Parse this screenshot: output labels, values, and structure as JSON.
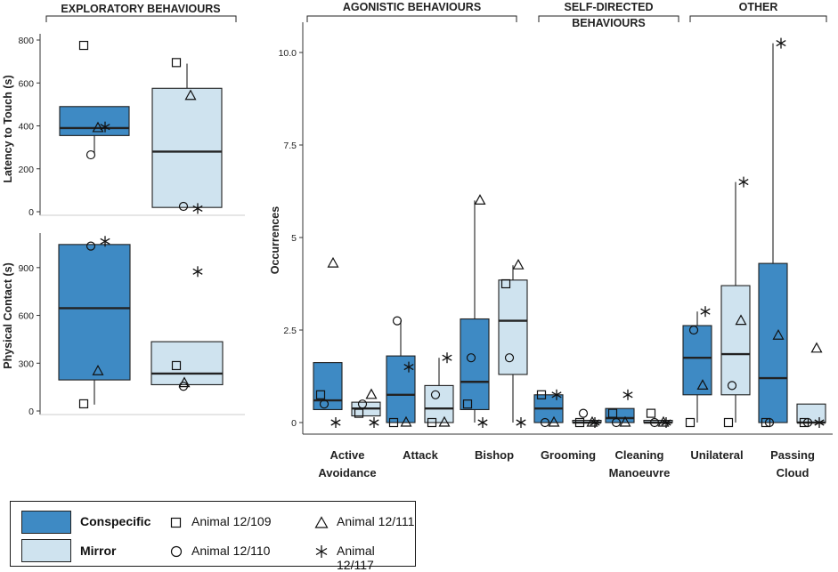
{
  "colors": {
    "conspecific": "#3e8ac4",
    "mirror": "#cfe3ef",
    "stroke": "#1f1f1f",
    "median": "#222222"
  },
  "legend": {
    "groups": [
      {
        "key": "conspecific",
        "label": "Conspecific"
      },
      {
        "key": "mirror",
        "label": "Mirror"
      }
    ],
    "animals": [
      {
        "label": "Animal 12/109",
        "marker": "square"
      },
      {
        "label": "Animal 12/111",
        "marker": "triangle"
      },
      {
        "label": "Animal 12/110",
        "marker": "circle"
      },
      {
        "label": "Animal 12/117",
        "marker": "star"
      }
    ]
  },
  "chart_data": [
    {
      "id": "latency",
      "type": "box",
      "title": "EXPLORATORY BEHAVIOURS",
      "ylabel": "Latency to Touch (s)",
      "ylim": [
        0,
        800
      ],
      "yticks": [
        0,
        200,
        400,
        600,
        800
      ],
      "boxes": [
        {
          "group": "conspecific",
          "q1": 355,
          "median": 390,
          "q3": 490,
          "whisker_low": 270,
          "whisker_high": 490,
          "points": [
            {
              "animal": "Animal 12/109",
              "marker": "square",
              "value": 775
            },
            {
              "animal": "Animal 12/111",
              "marker": "triangle",
              "value": 390
            },
            {
              "animal": "Animal 12/110",
              "marker": "circle",
              "value": 265
            },
            {
              "animal": "Animal 12/117",
              "marker": "star",
              "value": 395
            }
          ]
        },
        {
          "group": "mirror",
          "q1": 20,
          "median": 280,
          "q3": 575,
          "whisker_low": 20,
          "whisker_high": 690,
          "points": [
            {
              "animal": "Animal 12/109",
              "marker": "square",
              "value": 695
            },
            {
              "animal": "Animal 12/111",
              "marker": "triangle",
              "value": 540
            },
            {
              "animal": "Animal 12/110",
              "marker": "circle",
              "value": 25
            },
            {
              "animal": "Animal 12/117",
              "marker": "star",
              "value": 15
            }
          ]
        }
      ]
    },
    {
      "id": "contact",
      "type": "box",
      "ylabel": "Physical Contact (s)",
      "ylim": [
        0,
        1100
      ],
      "yticks": [
        0,
        300,
        600,
        900
      ],
      "boxes": [
        {
          "group": "conspecific",
          "q1": 195,
          "median": 645,
          "q3": 1045,
          "whisker_low": 40,
          "whisker_high": 1045,
          "points": [
            {
              "animal": "Animal 12/109",
              "marker": "square",
              "value": 45
            },
            {
              "animal": "Animal 12/111",
              "marker": "triangle",
              "value": 250
            },
            {
              "animal": "Animal 12/110",
              "marker": "circle",
              "value": 1035
            },
            {
              "animal": "Animal 12/117",
              "marker": "star",
              "value": 1065
            }
          ]
        },
        {
          "group": "mirror",
          "q1": 165,
          "median": 235,
          "q3": 435,
          "whisker_low": 165,
          "whisker_high": 435,
          "points": [
            {
              "animal": "Animal 12/109",
              "marker": "square",
              "value": 285
            },
            {
              "animal": "Animal 12/111",
              "marker": "triangle",
              "value": 175
            },
            {
              "animal": "Animal 12/110",
              "marker": "circle",
              "value": 155
            },
            {
              "animal": "Animal 12/117",
              "marker": "star",
              "value": 875
            }
          ]
        }
      ]
    },
    {
      "id": "occurrences",
      "type": "box",
      "ylabel": "Occurrences",
      "ylim": [
        0,
        10.5
      ],
      "yticks": [
        0,
        2.5,
        5,
        7.5,
        10
      ],
      "ytick_labels": [
        "0",
        "2.5",
        "5",
        "7.5",
        "10.0"
      ],
      "section_titles": [
        {
          "label": "AGONISTIC BEHAVIOURS",
          "from": 0,
          "to": 2
        },
        {
          "label": "SELF-DIRECTED\nBEHAVIOURS",
          "from": 3,
          "to": 4
        },
        {
          "label": "OTHER",
          "from": 5,
          "to": 6
        }
      ],
      "categories": [
        {
          "label": "Active\nAvoidance",
          "boxes": [
            {
              "group": "conspecific",
              "q1": 0.35,
              "median": 0.6,
              "q3": 1.62,
              "whisker_low": 0.35,
              "whisker_high": 1.62,
              "points": [
                {
                  "marker": "square",
                  "value": 0.75
                },
                {
                  "marker": "triangle",
                  "value": 4.3
                },
                {
                  "marker": "circle",
                  "value": 0.5
                },
                {
                  "marker": "star",
                  "value": 0.0
                }
              ]
            },
            {
              "group": "mirror",
              "q1": 0.18,
              "median": 0.38,
              "q3": 0.55,
              "whisker_low": 0.18,
              "whisker_high": 0.55,
              "points": [
                {
                  "marker": "square",
                  "value": 0.25
                },
                {
                  "marker": "triangle",
                  "value": 0.75
                },
                {
                  "marker": "circle",
                  "value": 0.5
                },
                {
                  "marker": "star",
                  "value": 0.0
                }
              ]
            }
          ]
        },
        {
          "label": "Attack",
          "boxes": [
            {
              "group": "conspecific",
              "q1": 0.0,
              "median": 0.75,
              "q3": 1.8,
              "whisker_low": 0.0,
              "whisker_high": 2.75,
              "points": [
                {
                  "marker": "square",
                  "value": 0.0
                },
                {
                  "marker": "triangle",
                  "value": 0.0
                },
                {
                  "marker": "circle",
                  "value": 2.75
                },
                {
                  "marker": "star",
                  "value": 1.5
                }
              ]
            },
            {
              "group": "mirror",
              "q1": 0.0,
              "median": 0.38,
              "q3": 1.0,
              "whisker_low": 0.0,
              "whisker_high": 1.75,
              "points": [
                {
                  "marker": "square",
                  "value": 0.0
                },
                {
                  "marker": "triangle",
                  "value": 0.0
                },
                {
                  "marker": "circle",
                  "value": 0.75
                },
                {
                  "marker": "star",
                  "value": 1.75
                }
              ]
            }
          ]
        },
        {
          "label": "Bishop",
          "boxes": [
            {
              "group": "conspecific",
              "q1": 0.35,
              "median": 1.1,
              "q3": 2.8,
              "whisker_low": 0.0,
              "whisker_high": 6.0,
              "points": [
                {
                  "marker": "square",
                  "value": 0.5
                },
                {
                  "marker": "triangle",
                  "value": 6.0
                },
                {
                  "marker": "circle",
                  "value": 1.75
                },
                {
                  "marker": "star",
                  "value": 0.0
                }
              ]
            },
            {
              "group": "mirror",
              "q1": 1.3,
              "median": 2.75,
              "q3": 3.85,
              "whisker_low": 0.0,
              "whisker_high": 4.25,
              "points": [
                {
                  "marker": "square",
                  "value": 3.75
                },
                {
                  "marker": "triangle",
                  "value": 4.25
                },
                {
                  "marker": "circle",
                  "value": 1.75
                },
                {
                  "marker": "star",
                  "value": 0.0
                }
              ]
            }
          ]
        },
        {
          "label": "Grooming",
          "boxes": [
            {
              "group": "conspecific",
              "q1": 0.0,
              "median": 0.38,
              "q3": 0.75,
              "whisker_low": 0.0,
              "whisker_high": 0.75,
              "points": [
                {
                  "marker": "square",
                  "value": 0.75
                },
                {
                  "marker": "triangle",
                  "value": 0.0
                },
                {
                  "marker": "circle",
                  "value": 0.0
                },
                {
                  "marker": "star",
                  "value": 0.75
                }
              ]
            },
            {
              "group": "mirror",
              "q1": 0.0,
              "median": 0.0,
              "q3": 0.06,
              "whisker_low": 0.0,
              "whisker_high": 0.06,
              "points": [
                {
                  "marker": "square",
                  "value": 0.0
                },
                {
                  "marker": "triangle",
                  "value": 0.0
                },
                {
                  "marker": "circle",
                  "value": 0.25
                },
                {
                  "marker": "star",
                  "value": 0.0
                }
              ]
            }
          ]
        },
        {
          "label": "Cleaning\nManoeuvre",
          "boxes": [
            {
              "group": "conspecific",
              "q1": 0.0,
              "median": 0.12,
              "q3": 0.38,
              "whisker_low": 0.0,
              "whisker_high": 0.38,
              "points": [
                {
                  "marker": "square",
                  "value": 0.25
                },
                {
                  "marker": "triangle",
                  "value": 0.0
                },
                {
                  "marker": "circle",
                  "value": 0.0
                },
                {
                  "marker": "star",
                  "value": 0.75
                }
              ]
            },
            {
              "group": "mirror",
              "q1": 0.0,
              "median": 0.0,
              "q3": 0.06,
              "whisker_low": 0.0,
              "whisker_high": 0.06,
              "points": [
                {
                  "marker": "square",
                  "value": 0.25
                },
                {
                  "marker": "triangle",
                  "value": 0.0
                },
                {
                  "marker": "circle",
                  "value": 0.0
                },
                {
                  "marker": "star",
                  "value": 0.0
                }
              ]
            }
          ]
        },
        {
          "label": "Unilateral",
          "boxes": [
            {
              "group": "conspecific",
              "q1": 0.75,
              "median": 1.75,
              "q3": 2.62,
              "whisker_low": 0.0,
              "whisker_high": 3.0,
              "points": [
                {
                  "marker": "square",
                  "value": 0.0
                },
                {
                  "marker": "triangle",
                  "value": 1.0
                },
                {
                  "marker": "circle",
                  "value": 2.5
                },
                {
                  "marker": "star",
                  "value": 3.0
                }
              ]
            },
            {
              "group": "mirror",
              "q1": 0.75,
              "median": 1.85,
              "q3": 3.7,
              "whisker_low": 0.0,
              "whisker_high": 6.5,
              "points": [
                {
                  "marker": "square",
                  "value": 0.0
                },
                {
                  "marker": "triangle",
                  "value": 2.75
                },
                {
                  "marker": "circle",
                  "value": 1.0
                },
                {
                  "marker": "star",
                  "value": 6.5
                }
              ]
            }
          ]
        },
        {
          "label": "Passing\nCloud",
          "boxes": [
            {
              "group": "conspecific",
              "q1": 0.0,
              "median": 1.2,
              "q3": 4.3,
              "whisker_low": 0.0,
              "whisker_high": 10.25,
              "points": [
                {
                  "marker": "square",
                  "value": 0.0
                },
                {
                  "marker": "triangle",
                  "value": 2.35
                },
                {
                  "marker": "circle",
                  "value": 0.0
                },
                {
                  "marker": "star",
                  "value": 10.25
                }
              ]
            },
            {
              "group": "mirror",
              "q1": 0.0,
              "median": 0.0,
              "q3": 0.5,
              "whisker_low": 0.0,
              "whisker_high": 0.5,
              "points": [
                {
                  "marker": "square",
                  "value": 0.0
                },
                {
                  "marker": "triangle",
                  "value": 2.0
                },
                {
                  "marker": "circle",
                  "value": 0.0
                },
                {
                  "marker": "star",
                  "value": 0.0
                }
              ]
            }
          ]
        }
      ]
    }
  ]
}
